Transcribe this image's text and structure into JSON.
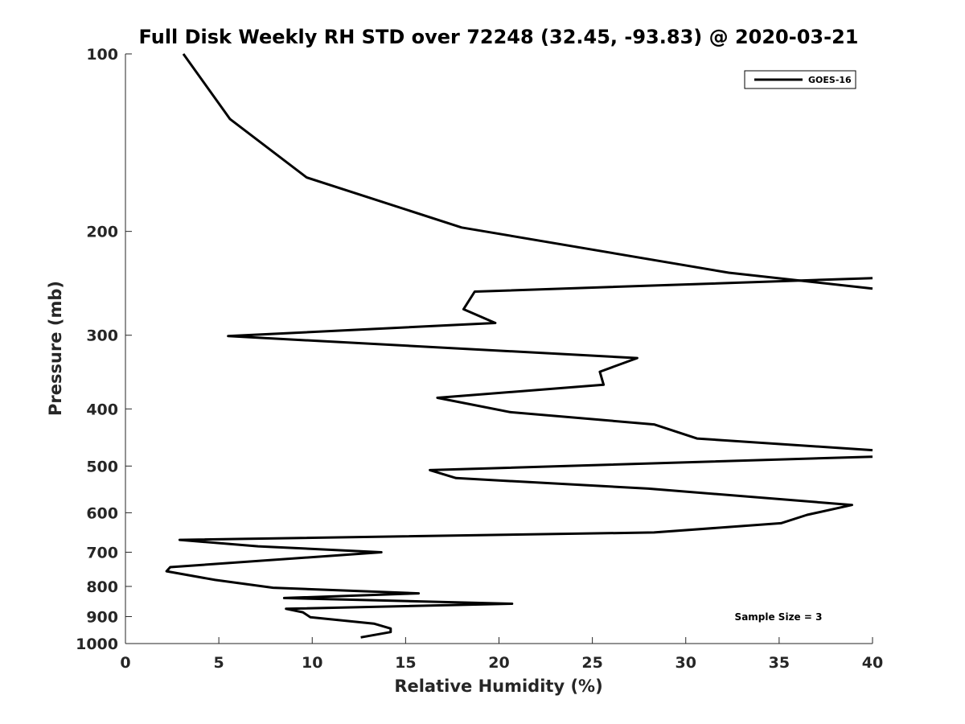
{
  "chart_data": {
    "type": "line",
    "title": "Full Disk Weekly RH STD over 72248 (32.45, -93.83) @ 2020-03-21",
    "xlabel": "Relative Humidity (%)",
    "ylabel": "Pressure (mb)",
    "xlim": [
      0,
      40
    ],
    "ylim": [
      100,
      1000
    ],
    "y_scale": "log",
    "y_reversed": true,
    "x_ticks": [
      0,
      5,
      10,
      15,
      20,
      25,
      30,
      35,
      40
    ],
    "y_ticks": [
      100,
      200,
      300,
      400,
      500,
      600,
      700,
      800,
      900,
      1000
    ],
    "grid": false,
    "legend_position": "top-right",
    "annotation": "Sample Size = 3",
    "series": [
      {
        "name": "GOES-16",
        "color": "#000000",
        "x": [
          3.1,
          5.6,
          9.7,
          18.0,
          32.3,
          40,
          null,
          40,
          18.7,
          18.1,
          19.8,
          5.5,
          27.4,
          25.4,
          25.6,
          16.7,
          20.6,
          28.3,
          30.6,
          40,
          null,
          40,
          16.3,
          17.7,
          28.0,
          38.9,
          36.5,
          35.1,
          28.3,
          2.9,
          7.1,
          13.7,
          2.4,
          2.2,
          4.8,
          7.9,
          15.7,
          8.5,
          20.7,
          8.6,
          9.5,
          9.9,
          13.3,
          14.2,
          14.2,
          12.6
        ],
        "y": [
          100,
          129,
          162,
          197,
          235,
          250,
          null,
          240,
          253,
          271,
          286,
          301,
          328,
          346,
          364,
          383,
          405,
          425,
          449,
          470,
          null,
          482,
          508,
          524,
          546,
          582,
          605,
          625,
          648,
          667,
          684,
          700,
          742,
          754,
          780,
          804,
          822,
          837,
          856,
          873,
          885,
          902,
          925,
          943,
          956,
          976
        ]
      }
    ]
  }
}
